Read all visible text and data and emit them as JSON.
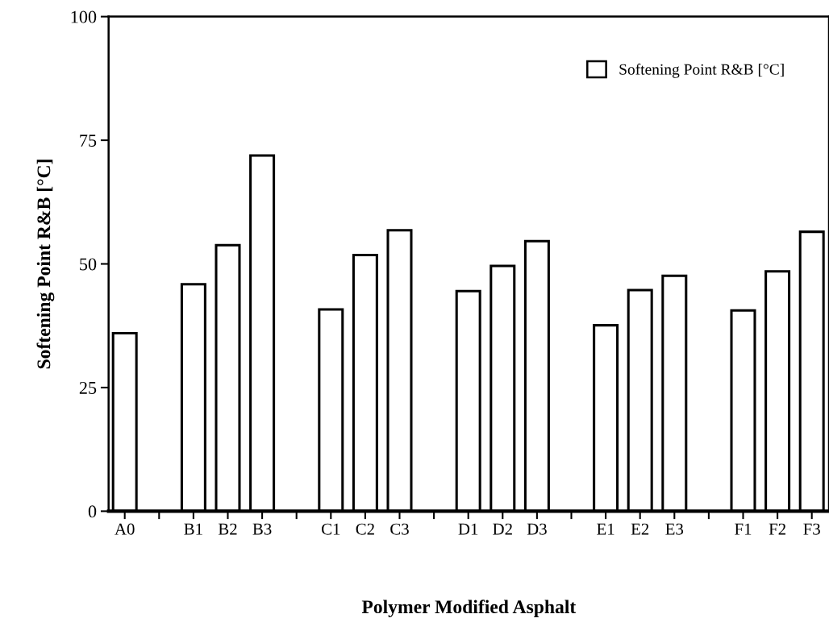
{
  "chart_data": {
    "type": "bar",
    "xlabel": "Polymer Modified Asphalt",
    "ylabel": "Softening Point R&B [°C]",
    "categories": [
      "A0",
      null,
      "B1",
      "B2",
      "B3",
      null,
      "C1",
      "C2",
      "C3",
      null,
      "D1",
      "D2",
      "D3",
      null,
      "E1",
      "E2",
      "E3",
      null,
      "F1",
      "F2",
      "F3"
    ],
    "series": [
      {
        "name": "Softening Point R&B [°C]",
        "color": "#ffffff",
        "values": [
          36.0,
          null,
          45.9,
          53.8,
          71.9,
          null,
          40.8,
          51.8,
          56.8,
          null,
          44.5,
          49.6,
          54.6,
          null,
          37.6,
          44.7,
          47.6,
          null,
          40.6,
          48.5,
          56.5
        ]
      }
    ],
    "ylim": [
      0,
      100
    ],
    "yticks": [
      0,
      25,
      50,
      75,
      100
    ],
    "grid": false,
    "legend": "top right"
  }
}
